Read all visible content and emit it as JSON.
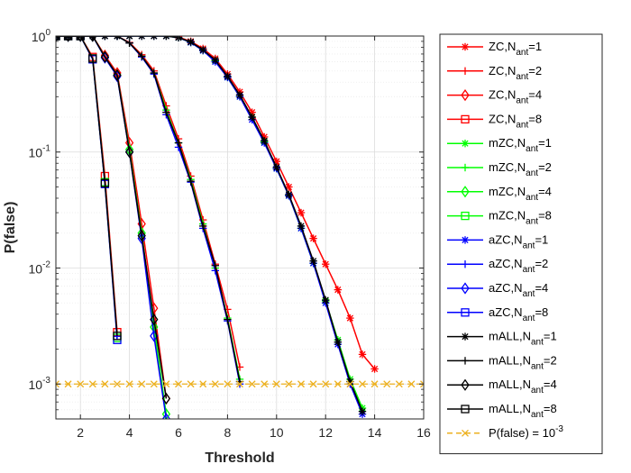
{
  "chart_data": {
    "type": "line",
    "yscale": "log",
    "xlabel": "Threshold",
    "ylabel": "P(false)",
    "xlim": [
      1,
      16
    ],
    "ylim": [
      0.0005,
      1
    ],
    "grid": true,
    "legend_position": "outside-right",
    "x_ticks": [
      2,
      4,
      6,
      8,
      10,
      12,
      14,
      16
    ],
    "x_tick_labels": [
      "2",
      "4",
      "6",
      "8",
      "10",
      "12",
      "14",
      "16"
    ],
    "y_ticks": [
      1,
      0.1,
      0.01,
      0.001
    ],
    "y_tick_labels": [
      {
        "base": "10",
        "exp": "0"
      },
      {
        "base": "10",
        "exp": "-1"
      },
      {
        "base": "10",
        "exp": "-2"
      },
      {
        "base": "10",
        "exp": "-3"
      }
    ],
    "series": [
      {
        "name": "ZC,N_ant=1",
        "label": "ZC,N",
        "sub": "ant",
        "suffix": "=1",
        "color": "#ff0000",
        "marker": "asterisk",
        "x": [
          1,
          1.5,
          2,
          2.5,
          3,
          3.5,
          4,
          4.5,
          5,
          5.5,
          6,
          6.5,
          7,
          7.5,
          8,
          8.5,
          9,
          9.5,
          10,
          10.5,
          11,
          11.5,
          12,
          12.5,
          13,
          13.5,
          14
        ],
        "y": [
          1,
          1,
          1,
          1,
          1,
          1,
          1,
          1,
          1,
          1,
          0.98,
          0.9,
          0.78,
          0.64,
          0.47,
          0.33,
          0.22,
          0.135,
          0.083,
          0.05,
          0.03,
          0.018,
          0.0108,
          0.0065,
          0.0037,
          0.0018,
          0.00135
        ]
      },
      {
        "name": "ZC,N_ant=2",
        "label": "ZC,N",
        "sub": "ant",
        "suffix": "=2",
        "color": "#ff0000",
        "marker": "plus",
        "x": [
          1,
          1.5,
          2,
          2.5,
          3,
          3.5,
          4,
          4.5,
          5,
          5.5,
          6,
          6.5,
          7,
          7.5,
          8,
          8.5
        ],
        "y": [
          1,
          1,
          1,
          1,
          1,
          1,
          0.88,
          0.69,
          0.5,
          0.25,
          0.13,
          0.062,
          0.026,
          0.0108,
          0.0044,
          0.0014
        ]
      },
      {
        "name": "ZC,N_ant=4",
        "label": "ZC,N",
        "sub": "ant",
        "suffix": "=4",
        "color": "#ff0000",
        "marker": "diamond",
        "x": [
          1,
          1.5,
          2,
          2.5,
          3,
          3.5,
          4,
          4.5,
          5,
          5.5
        ],
        "y": [
          1,
          1,
          1,
          1,
          0.68,
          0.48,
          0.12,
          0.024,
          0.0045,
          0.00075
        ]
      },
      {
        "name": "ZC,N_ant=8",
        "label": "ZC,N",
        "sub": "ant",
        "suffix": "=8",
        "color": "#ff0000",
        "marker": "square",
        "x": [
          1,
          1.5,
          2,
          2.5,
          3,
          3.5
        ],
        "y": [
          1,
          1,
          1,
          0.66,
          0.062,
          0.0028
        ]
      },
      {
        "name": "mZC,N_ant=1",
        "label": "mZC,N",
        "sub": "ant",
        "suffix": "=1",
        "color": "#00ff00",
        "marker": "asterisk",
        "x": [
          1,
          1.5,
          2,
          2.5,
          3,
          3.5,
          4,
          4.5,
          5,
          5.5,
          6,
          6.5,
          7,
          7.5,
          8,
          8.5,
          9,
          9.5,
          10,
          10.5,
          11,
          11.5,
          12,
          12.5,
          13,
          13.5
        ],
        "y": [
          1,
          1,
          1,
          1,
          1,
          1,
          1,
          1,
          1,
          1,
          0.97,
          0.88,
          0.75,
          0.61,
          0.44,
          0.3,
          0.2,
          0.122,
          0.072,
          0.042,
          0.022,
          0.011,
          0.0052,
          0.0024,
          0.0011,
          0.00062
        ]
      },
      {
        "name": "mZC,N_ant=2",
        "label": "mZC,N",
        "sub": "ant",
        "suffix": "=2",
        "color": "#00ff00",
        "marker": "plus",
        "x": [
          1,
          1.5,
          2,
          2.5,
          3,
          3.5,
          4,
          4.5,
          5,
          5.5,
          6,
          6.5,
          7,
          7.5,
          8,
          8.5
        ],
        "y": [
          1,
          1,
          1,
          1,
          1,
          1,
          0.87,
          0.67,
          0.48,
          0.23,
          0.12,
          0.058,
          0.024,
          0.01,
          0.0037,
          0.0011
        ]
      },
      {
        "name": "mZC,N_ant=4",
        "label": "mZC,N",
        "sub": "ant",
        "suffix": "=4",
        "color": "#00ff00",
        "marker": "diamond",
        "x": [
          1,
          1.5,
          2,
          2.5,
          3,
          3.5,
          4,
          4.5,
          5,
          5.5
        ],
        "y": [
          1,
          1,
          1,
          1,
          0.66,
          0.46,
          0.105,
          0.02,
          0.0031,
          0.00055
        ]
      },
      {
        "name": "mZC,N_ant=8",
        "label": "mZC,N",
        "sub": "ant",
        "suffix": "=8",
        "color": "#00ff00",
        "marker": "square",
        "x": [
          1,
          1.5,
          2,
          2.5,
          3,
          3.5
        ],
        "y": [
          1,
          1,
          1,
          0.64,
          0.055,
          0.0025
        ]
      },
      {
        "name": "aZC,N_ant=1",
        "label": "aZC,N",
        "sub": "ant",
        "suffix": "=1",
        "color": "#0000ff",
        "marker": "asterisk",
        "x": [
          1,
          1.5,
          2,
          2.5,
          3,
          3.5,
          4,
          4.5,
          5,
          5.5,
          6,
          6.5,
          7,
          7.5,
          8,
          8.5,
          9,
          9.5,
          10,
          10.5,
          11,
          11.5,
          12,
          12.5,
          13,
          13.5
        ],
        "y": [
          1,
          1,
          1,
          1,
          1,
          1,
          1,
          1,
          1,
          1,
          0.97,
          0.88,
          0.75,
          0.6,
          0.44,
          0.3,
          0.19,
          0.12,
          0.072,
          0.042,
          0.022,
          0.011,
          0.005,
          0.0022,
          0.001,
          0.00055
        ]
      },
      {
        "name": "aZC,N_ant=2",
        "label": "aZC,N",
        "sub": "ant",
        "suffix": "=2",
        "color": "#0000ff",
        "marker": "plus",
        "x": [
          1,
          1.5,
          2,
          2.5,
          3,
          3.5,
          4,
          4.5,
          5,
          5.5,
          6,
          6.5,
          7,
          7.5,
          8,
          8.5
        ],
        "y": [
          1,
          1,
          1,
          1,
          1,
          1,
          0.87,
          0.66,
          0.47,
          0.21,
          0.11,
          0.055,
          0.022,
          0.0095,
          0.0035,
          0.001
        ]
      },
      {
        "name": "aZC,N_ant=4",
        "label": "aZC,N",
        "sub": "ant",
        "suffix": "=4",
        "color": "#0000ff",
        "marker": "diamond",
        "x": [
          1,
          1.5,
          2,
          2.5,
          3,
          3.5,
          4,
          4.5,
          5,
          5.5
        ],
        "y": [
          1,
          1,
          1,
          1,
          0.65,
          0.45,
          0.1,
          0.018,
          0.0026,
          0.0005
        ]
      },
      {
        "name": "aZC,N_ant=8",
        "label": "aZC,N",
        "sub": "ant",
        "suffix": "=8",
        "color": "#0000ff",
        "marker": "square",
        "x": [
          1,
          1.5,
          2,
          2.5,
          3,
          3.5
        ],
        "y": [
          1,
          1,
          1,
          0.63,
          0.053,
          0.0024
        ]
      },
      {
        "name": "mALL,N_ant=1",
        "label": "mALL,N",
        "sub": "ant",
        "suffix": "=1",
        "color": "#000000",
        "marker": "asterisk",
        "x": [
          1,
          1.5,
          2,
          2.5,
          3,
          3.5,
          4,
          4.5,
          5,
          5.5,
          6,
          6.5,
          7,
          7.5,
          8,
          8.5,
          9,
          9.5,
          10,
          10.5,
          11,
          11.5,
          12,
          12.5,
          13,
          13.5
        ],
        "y": [
          1,
          1,
          1,
          1,
          1,
          1,
          1,
          1,
          1,
          1,
          0.97,
          0.89,
          0.76,
          0.62,
          0.45,
          0.31,
          0.2,
          0.125,
          0.074,
          0.043,
          0.023,
          0.0115,
          0.0053,
          0.0023,
          0.00105,
          0.00058
        ]
      },
      {
        "name": "mALL,N_ant=2",
        "label": "mALL,N",
        "sub": "ant",
        "suffix": "=2",
        "color": "#000000",
        "marker": "plus",
        "x": [
          1,
          1.5,
          2,
          2.5,
          3,
          3.5,
          4,
          4.5,
          5,
          5.5,
          6,
          6.5,
          7,
          7.5,
          8,
          8.5
        ],
        "y": [
          1,
          1,
          1,
          1,
          1,
          1,
          0.87,
          0.67,
          0.48,
          0.22,
          0.12,
          0.056,
          0.023,
          0.0105,
          0.0036,
          0.00105
        ]
      },
      {
        "name": "mALL,N_ant=4",
        "label": "mALL,N",
        "sub": "ant",
        "suffix": "=4",
        "color": "#000000",
        "marker": "diamond",
        "x": [
          1,
          1.5,
          2,
          2.5,
          3,
          3.5,
          4,
          4.5,
          5,
          5.5
        ],
        "y": [
          1,
          1,
          1,
          1,
          0.66,
          0.46,
          0.1,
          0.019,
          0.0036,
          0.00075
        ]
      },
      {
        "name": "mALL,N_ant=8",
        "label": "mALL,N",
        "sub": "ant",
        "suffix": "=8",
        "color": "#000000",
        "marker": "square",
        "x": [
          1,
          1.5,
          2,
          2.5,
          3,
          3.5
        ],
        "y": [
          1,
          1,
          1,
          0.64,
          0.054,
          0.0026
        ]
      },
      {
        "name": "P(false) = 10^-3",
        "label": "P(false) = 10",
        "sup": "-3",
        "color": "#edb120",
        "marker": "x",
        "dashed": true,
        "x": [
          1,
          1.5,
          2,
          2.5,
          3,
          3.5,
          4,
          4.5,
          5,
          5.5,
          6,
          6.5,
          7,
          7.5,
          8,
          8.5,
          9,
          9.5,
          10,
          10.5,
          11,
          11.5,
          12,
          12.5,
          13,
          13.5,
          14,
          14.5,
          15,
          15.5,
          16
        ],
        "y": [
          0.001,
          0.001,
          0.001,
          0.001,
          0.001,
          0.001,
          0.001,
          0.001,
          0.001,
          0.001,
          0.001,
          0.001,
          0.001,
          0.001,
          0.001,
          0.001,
          0.001,
          0.001,
          0.001,
          0.001,
          0.001,
          0.001,
          0.001,
          0.001,
          0.001,
          0.001,
          0.001,
          0.001,
          0.001,
          0.001,
          0.001
        ]
      }
    ]
  }
}
